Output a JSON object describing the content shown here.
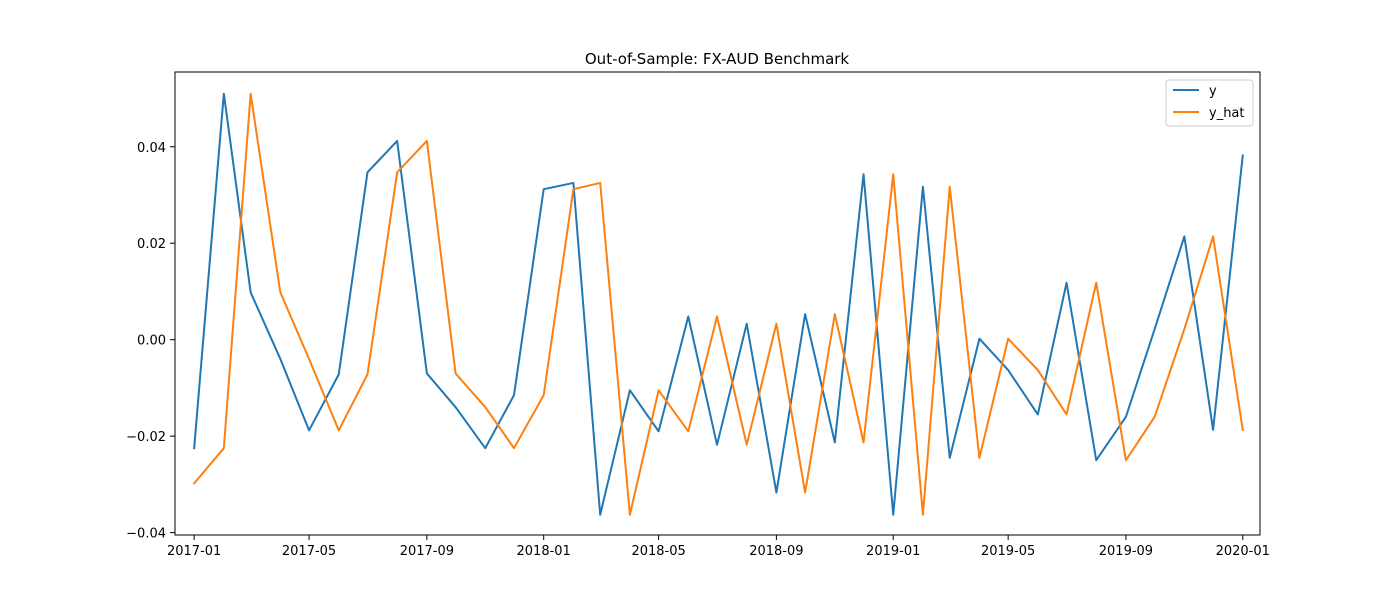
{
  "chart_data": {
    "type": "line",
    "title": "Out-of-Sample: FX-AUD Benchmark",
    "xlabel": "",
    "ylabel": "",
    "x": [
      "2017-01",
      "2017-02",
      "2017-03",
      "2017-04",
      "2017-05",
      "2017-06",
      "2017-07",
      "2017-08",
      "2017-09",
      "2017-10",
      "2017-11",
      "2017-12",
      "2018-01",
      "2018-02",
      "2018-03",
      "2018-04",
      "2018-05",
      "2018-06",
      "2018-07",
      "2018-08",
      "2018-09",
      "2018-10",
      "2018-11",
      "2018-12",
      "2019-01",
      "2019-02",
      "2019-03",
      "2019-04",
      "2019-05",
      "2019-06",
      "2019-07",
      "2019-08",
      "2019-09",
      "2019-10",
      "2019-11",
      "2019-12",
      "2020-01"
    ],
    "xlim": [
      "2016-12-12",
      "2020-01-19"
    ],
    "ylim": [
      -0.0405,
      0.0555
    ],
    "x_ticks": [
      "2017-01",
      "2017-05",
      "2017-09",
      "2018-01",
      "2018-05",
      "2018-09",
      "2019-01",
      "2019-05",
      "2019-09",
      "2020-01"
    ],
    "y_ticks": [
      -0.04,
      -0.02,
      0.0,
      0.02,
      0.04
    ],
    "y_tick_labels": [
      "−0.04",
      "−0.02",
      "0.00",
      "0.02",
      "0.04"
    ],
    "grid": false,
    "legend_position": "top-right",
    "series": [
      {
        "name": "y",
        "color": "#1f77b4",
        "values": [
          -0.0225,
          0.051,
          0.0098,
          -0.004,
          -0.0188,
          -0.0072,
          0.0347,
          0.0412,
          -0.007,
          -0.014,
          -0.0225,
          -0.0115,
          0.0312,
          0.0325,
          -0.0363,
          -0.0105,
          -0.019,
          0.0048,
          -0.0218,
          0.0033,
          -0.0317,
          0.0053,
          -0.0213,
          0.0343,
          -0.0363,
          0.0317,
          -0.0245,
          0.0002,
          -0.0063,
          -0.0155,
          0.0118,
          -0.025,
          -0.016,
          0.0022,
          0.0214,
          -0.0187,
          0.0382
        ]
      },
      {
        "name": "y_hat",
        "color": "#ff7f0e",
        "values": [
          -0.0298,
          -0.0225,
          0.051,
          0.0098,
          -0.004,
          -0.0188,
          -0.0072,
          0.0347,
          0.0412,
          -0.007,
          -0.014,
          -0.0225,
          -0.0115,
          0.0312,
          0.0325,
          -0.0363,
          -0.0105,
          -0.019,
          0.0048,
          -0.0218,
          0.0033,
          -0.0317,
          0.0053,
          -0.0213,
          0.0343,
          -0.0363,
          0.0317,
          -0.0245,
          0.0002,
          -0.0063,
          -0.0155,
          0.0118,
          -0.025,
          -0.016,
          0.0022,
          0.0214,
          -0.0187
        ]
      }
    ]
  }
}
